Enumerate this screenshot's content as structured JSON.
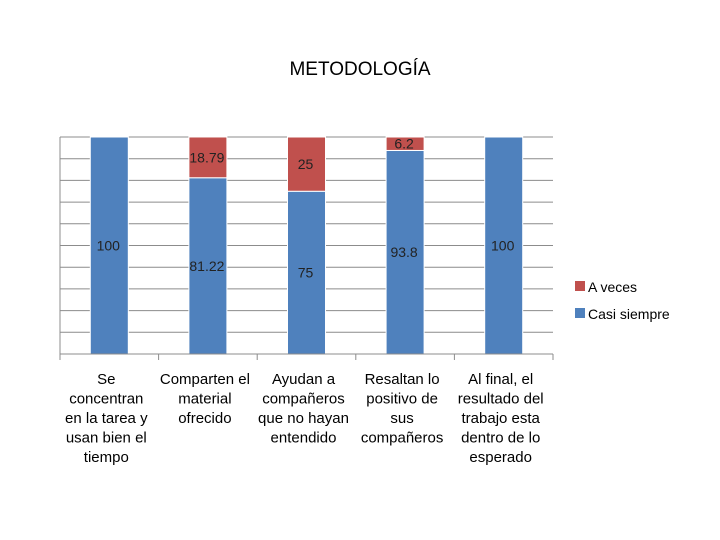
{
  "chart_data": {
    "type": "bar",
    "stacked": true,
    "percent_stacked": true,
    "title": "METODOLOGÍA",
    "categories": [
      [
        "Se",
        "concentran",
        "en la tarea y",
        "usan bien el",
        "tiempo"
      ],
      [
        "Comparten el",
        "material",
        "ofrecido"
      ],
      [
        "Ayudan a",
        "compañeros",
        "que no hayan",
        "entendido"
      ],
      [
        "Resaltan lo",
        "positivo de",
        "sus",
        "compañeros"
      ],
      [
        "Al final, el",
        "resultado del",
        "trabajo esta",
        "dentro de lo",
        "esperado"
      ]
    ],
    "series": [
      {
        "name": "Casi siempre",
        "color": "#4F81BD",
        "values": [
          100,
          81.22,
          75,
          93.8,
          100
        ],
        "labels": [
          "100",
          "81.22",
          "75",
          "93.8",
          "100"
        ]
      },
      {
        "name": "A veces",
        "color": "#C0504D",
        "values": [
          0,
          18.79,
          25,
          6.2,
          0
        ],
        "labels": [
          "",
          "18.79",
          "25",
          "6.2",
          ""
        ]
      }
    ],
    "legend_order": [
      "A veces",
      "Casi siempre"
    ],
    "legend_position": "right",
    "ylim": [
      0,
      100
    ],
    "grid": true
  }
}
